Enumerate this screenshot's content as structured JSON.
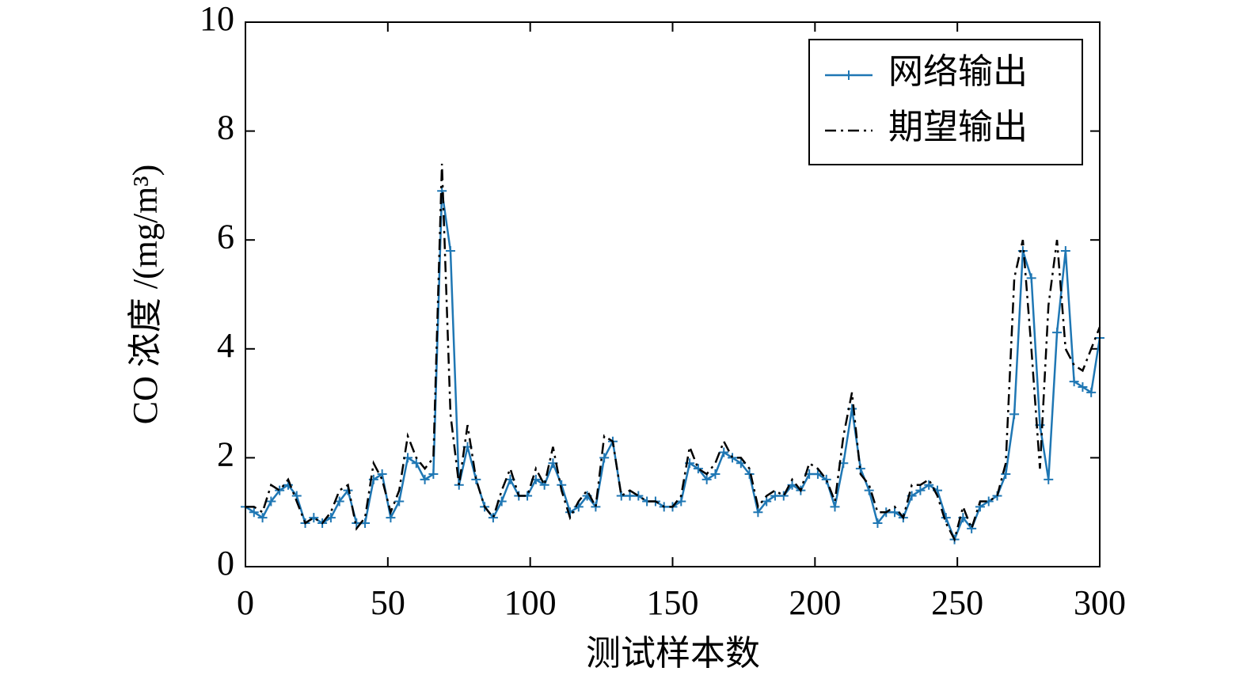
{
  "chart_data": {
    "type": "line",
    "xlabel": "测试样本数",
    "ylabel": "CO 浓度 /(mg/m³)",
    "x": [
      0,
      3,
      6,
      9,
      12,
      15,
      18,
      21,
      24,
      27,
      30,
      33,
      36,
      39,
      42,
      45,
      48,
      51,
      54,
      57,
      60,
      63,
      66,
      69,
      72,
      75,
      78,
      81,
      84,
      87,
      90,
      93,
      96,
      99,
      102,
      105,
      108,
      111,
      114,
      117,
      120,
      123,
      126,
      129,
      132,
      135,
      138,
      141,
      144,
      147,
      150,
      153,
      156,
      159,
      162,
      165,
      168,
      171,
      174,
      177,
      180,
      183,
      186,
      189,
      192,
      195,
      198,
      201,
      204,
      207,
      210,
      213,
      216,
      219,
      222,
      225,
      228,
      231,
      234,
      237,
      240,
      243,
      246,
      249,
      252,
      255,
      258,
      261,
      264,
      267,
      270,
      273,
      276,
      279,
      282,
      285,
      288,
      291,
      294,
      297,
      300
    ],
    "series": [
      {
        "name": "网络输出",
        "color": "#1f77b4",
        "style": "solid-plus",
        "values": [
          1.1,
          1.0,
          0.9,
          1.2,
          1.4,
          1.5,
          1.3,
          0.8,
          0.9,
          0.8,
          0.9,
          1.2,
          1.4,
          0.8,
          0.8,
          1.6,
          1.7,
          0.9,
          1.2,
          2.0,
          1.9,
          1.6,
          1.7,
          6.9,
          5.8,
          1.5,
          2.2,
          1.6,
          1.1,
          0.9,
          1.2,
          1.6,
          1.3,
          1.3,
          1.6,
          1.5,
          1.9,
          1.5,
          1.0,
          1.1,
          1.3,
          1.1,
          2.0,
          2.3,
          1.3,
          1.3,
          1.3,
          1.2,
          1.2,
          1.1,
          1.1,
          1.2,
          1.9,
          1.8,
          1.6,
          1.7,
          2.1,
          2.0,
          1.9,
          1.7,
          1.0,
          1.2,
          1.3,
          1.3,
          1.5,
          1.4,
          1.7,
          1.7,
          1.6,
          1.1,
          1.9,
          2.9,
          1.8,
          1.4,
          0.8,
          1.0,
          1.0,
          0.9,
          1.3,
          1.4,
          1.5,
          1.4,
          0.9,
          0.5,
          0.9,
          0.7,
          1.1,
          1.2,
          1.3,
          1.7,
          2.8,
          5.8,
          5.3,
          2.6,
          1.6,
          4.3,
          5.8,
          3.4,
          3.3,
          3.2,
          4.2
        ]
      },
      {
        "name": "期望输出",
        "color": "#000000",
        "style": "dashdot",
        "values": [
          1.1,
          1.1,
          1.0,
          1.5,
          1.4,
          1.6,
          1.2,
          0.8,
          0.9,
          0.8,
          1.0,
          1.4,
          1.5,
          0.7,
          0.9,
          1.9,
          1.6,
          1.0,
          1.4,
          2.4,
          2.0,
          1.8,
          2.0,
          7.4,
          2.8,
          1.5,
          2.6,
          1.6,
          1.1,
          0.9,
          1.4,
          1.8,
          1.3,
          1.3,
          1.8,
          1.5,
          2.2,
          1.4,
          0.9,
          1.2,
          1.4,
          1.1,
          2.4,
          2.3,
          1.3,
          1.4,
          1.3,
          1.2,
          1.2,
          1.1,
          1.1,
          1.3,
          2.2,
          1.8,
          1.7,
          1.9,
          2.3,
          2.0,
          2.0,
          1.8,
          1.1,
          1.3,
          1.4,
          1.3,
          1.6,
          1.4,
          1.9,
          1.8,
          1.6,
          1.2,
          2.4,
          3.2,
          1.7,
          1.5,
          1.0,
          1.0,
          1.1,
          0.9,
          1.5,
          1.5,
          1.6,
          1.3,
          0.8,
          0.5,
          1.1,
          0.7,
          1.2,
          1.2,
          1.3,
          1.9,
          5.3,
          6.0,
          4.0,
          1.8,
          4.8,
          6.0,
          4.0,
          3.7,
          3.6,
          4.0,
          4.4
        ]
      }
    ],
    "xlim": [
      0,
      300
    ],
    "xticks": [
      0,
      50,
      100,
      150,
      200,
      250,
      300
    ],
    "ylim": [
      0,
      10
    ],
    "yticks": [
      0,
      2,
      4,
      6,
      8,
      10
    ],
    "grid": false,
    "legend": "upper right"
  }
}
